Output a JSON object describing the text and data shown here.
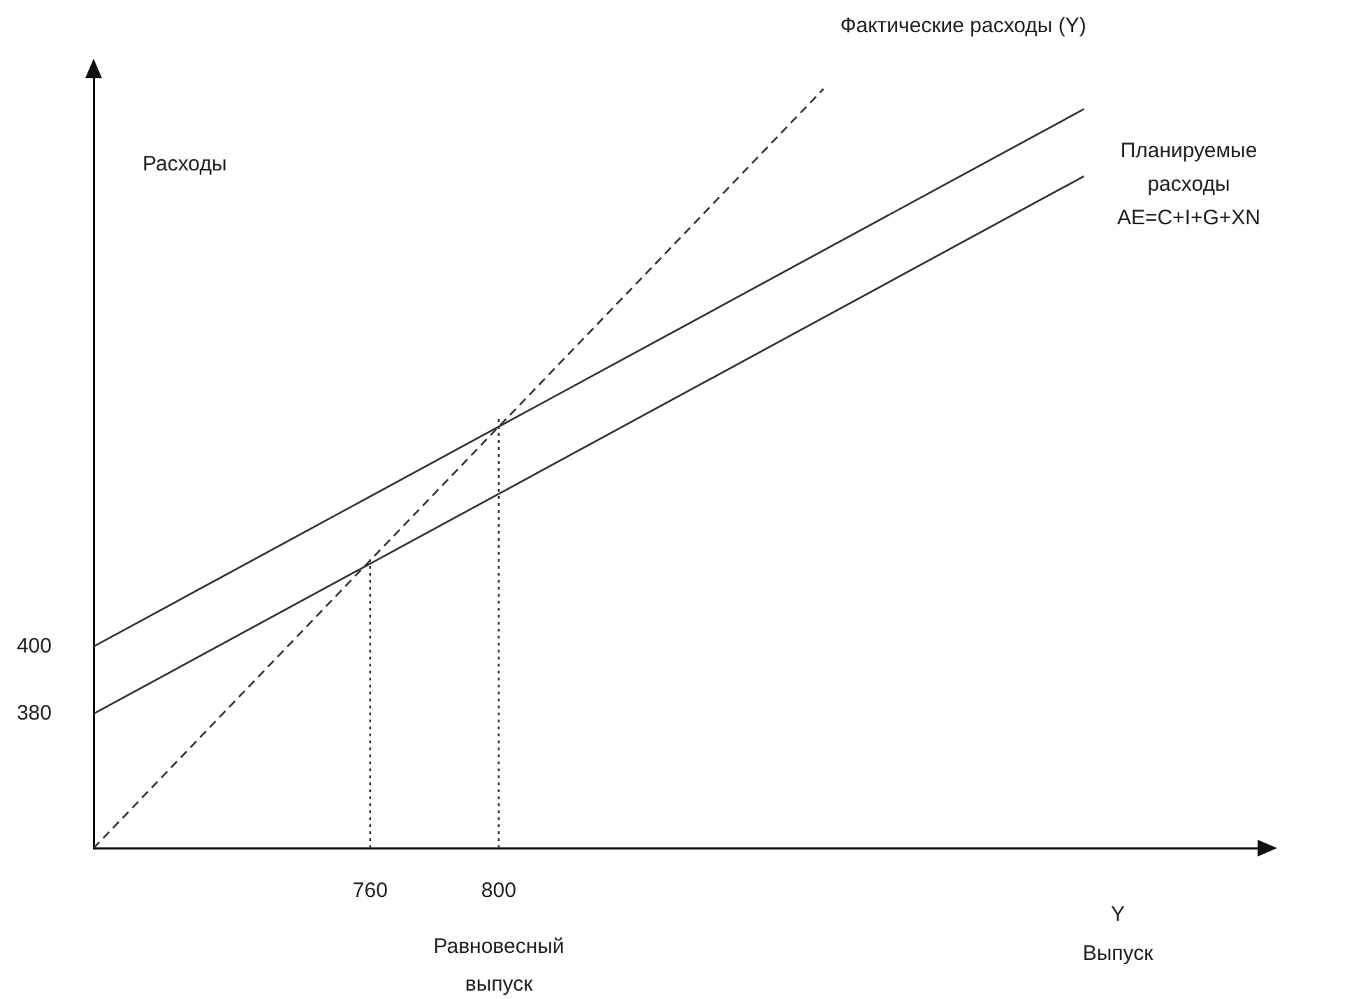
{
  "chart_data": {
    "type": "line",
    "xlabel": "Y\nВыпуск",
    "ylabel": "Расходы",
    "annotations": [
      "Равновесный выпуск"
    ],
    "xlim": [
      674,
      1036
    ],
    "ylim": [
      340,
      570
    ],
    "xticks": [
      760,
      800
    ],
    "yticks": [
      380,
      400
    ],
    "series": [
      {
        "color": "#333333",
        "x": [
          674,
          982
        ],
        "values": [
          400,
          560
        ],
        "line_style": "solid"
      },
      {
        "name": "Планируемые расходы AE=C+I+G+XN",
        "color": "#333333",
        "x": [
          674,
          982
        ],
        "values": [
          380,
          540
        ],
        "line_style": "solid"
      },
      {
        "name": "Фактические расходы (Y)",
        "color": "#333333",
        "x": [
          674,
          901
        ],
        "values": [
          340,
          566
        ],
        "line_style": "dashed"
      },
      {
        "color": "#333333",
        "x": [
          760,
          760
        ],
        "values": [
          340,
          426
        ],
        "line_style": "dotted"
      },
      {
        "color": "#333333",
        "x": [
          800,
          800
        ],
        "values": [
          340,
          468
        ],
        "line_style": "dotted"
      }
    ]
  }
}
